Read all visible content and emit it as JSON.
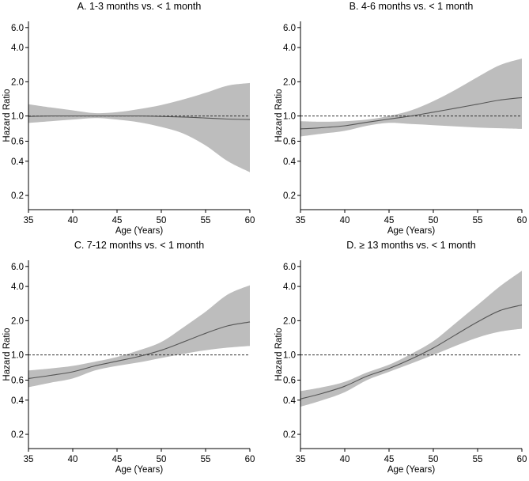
{
  "chart_data": [
    {
      "type": "line",
      "title": "A. 1-3 months vs. < 1 month",
      "xlabel": "Age (Years)",
      "ylabel": "Hazard Ratio",
      "x_ticks": [
        35,
        40,
        45,
        50,
        55,
        60
      ],
      "y_ticks": [
        0.2,
        0.4,
        0.6,
        1.0,
        2.0,
        4.0,
        6.0
      ],
      "y_tick_labels": [
        "0.2",
        "0.4",
        "0.6",
        "1.0",
        "2.0",
        "4.0",
        "6.0"
      ],
      "xlim": [
        35,
        60
      ],
      "ylim": [
        0.15,
        6.8
      ],
      "y_scale": "log",
      "reference_line": 1.0,
      "x": [
        35,
        37.5,
        40,
        42.5,
        45,
        47.5,
        50,
        52.5,
        55,
        57.5,
        60
      ],
      "series": [
        {
          "name": "estimate",
          "values": [
            0.99,
            1.0,
            1.0,
            1.0,
            1.0,
            1.0,
            0.99,
            0.98,
            0.96,
            0.94,
            0.93
          ]
        },
        {
          "name": "lower",
          "values": [
            0.87,
            0.9,
            0.93,
            0.96,
            0.93,
            0.88,
            0.8,
            0.7,
            0.55,
            0.4,
            0.32
          ]
        },
        {
          "name": "upper",
          "values": [
            1.27,
            1.19,
            1.12,
            1.06,
            1.08,
            1.15,
            1.25,
            1.4,
            1.6,
            1.85,
            1.95
          ]
        }
      ]
    },
    {
      "type": "line",
      "title": "B. 4-6 months vs. < 1 month",
      "xlabel": "Age (Years)",
      "ylabel": "Hazard Ratio",
      "x_ticks": [
        35,
        40,
        45,
        50,
        55,
        60
      ],
      "y_ticks": [
        0.2,
        0.4,
        0.6,
        1.0,
        2.0,
        4.0,
        6.0
      ],
      "y_tick_labels": [
        "0.2",
        "0.4",
        "0.6",
        "1.0",
        "2.0",
        "4.0",
        "6.0"
      ],
      "xlim": [
        35,
        60
      ],
      "ylim": [
        0.15,
        6.8
      ],
      "y_scale": "log",
      "reference_line": 1.0,
      "x": [
        35,
        37.5,
        40,
        42.5,
        45,
        47.5,
        50,
        52.5,
        55,
        57.5,
        60
      ],
      "series": [
        {
          "name": "estimate",
          "values": [
            0.77,
            0.79,
            0.82,
            0.88,
            0.94,
            1.0,
            1.08,
            1.17,
            1.27,
            1.38,
            1.45
          ]
        },
        {
          "name": "lower",
          "values": [
            0.66,
            0.7,
            0.74,
            0.82,
            0.87,
            0.85,
            0.83,
            0.81,
            0.79,
            0.78,
            0.77
          ]
        },
        {
          "name": "upper",
          "values": [
            0.9,
            0.89,
            0.9,
            0.93,
            1.0,
            1.12,
            1.35,
            1.7,
            2.2,
            2.8,
            3.2
          ]
        }
      ]
    },
    {
      "type": "line",
      "title": "C. 7-12 months vs. < 1 month",
      "xlabel": "Age (Years)",
      "ylabel": "Hazard Ratio",
      "x_ticks": [
        35,
        40,
        45,
        50,
        55,
        60
      ],
      "y_ticks": [
        0.2,
        0.4,
        0.6,
        1.0,
        2.0,
        4.0,
        6.0
      ],
      "y_tick_labels": [
        "0.2",
        "0.4",
        "0.6",
        "1.0",
        "2.0",
        "4.0",
        "6.0"
      ],
      "xlim": [
        35,
        60
      ],
      "ylim": [
        0.15,
        6.8
      ],
      "y_scale": "log",
      "reference_line": 1.0,
      "x": [
        35,
        37.5,
        40,
        42.5,
        45,
        47.5,
        50,
        52.5,
        55,
        57.5,
        60
      ],
      "series": [
        {
          "name": "estimate",
          "values": [
            0.62,
            0.66,
            0.71,
            0.8,
            0.88,
            0.97,
            1.1,
            1.3,
            1.55,
            1.8,
            1.95
          ]
        },
        {
          "name": "lower",
          "values": [
            0.52,
            0.57,
            0.62,
            0.73,
            0.8,
            0.86,
            0.94,
            1.02,
            1.1,
            1.16,
            1.2
          ]
        },
        {
          "name": "upper",
          "values": [
            0.73,
            0.76,
            0.8,
            0.87,
            0.96,
            1.1,
            1.3,
            1.75,
            2.4,
            3.4,
            4.1
          ]
        }
      ]
    },
    {
      "type": "line",
      "title": "D. ≥ 13 months vs. < 1 month",
      "xlabel": "Age (Years)",
      "ylabel": "Hazard Ratio",
      "x_ticks": [
        35,
        40,
        45,
        50,
        55,
        60
      ],
      "y_ticks": [
        0.2,
        0.4,
        0.6,
        1.0,
        2.0,
        4.0,
        6.0
      ],
      "y_tick_labels": [
        "0.2",
        "0.4",
        "0.6",
        "1.0",
        "2.0",
        "4.0",
        "6.0"
      ],
      "xlim": [
        35,
        60
      ],
      "ylim": [
        0.15,
        6.8
      ],
      "y_scale": "log",
      "reference_line": 1.0,
      "x": [
        35,
        37.5,
        40,
        42.5,
        45,
        47.5,
        50,
        52.5,
        55,
        57.5,
        60
      ],
      "series": [
        {
          "name": "estimate",
          "values": [
            0.41,
            0.46,
            0.53,
            0.65,
            0.76,
            0.92,
            1.15,
            1.5,
            1.95,
            2.45,
            2.75
          ]
        },
        {
          "name": "lower",
          "values": [
            0.35,
            0.4,
            0.47,
            0.6,
            0.71,
            0.84,
            1.0,
            1.2,
            1.42,
            1.6,
            1.7
          ]
        },
        {
          "name": "upper",
          "values": [
            0.48,
            0.52,
            0.58,
            0.7,
            0.82,
            1.02,
            1.32,
            1.9,
            2.75,
            4.0,
            5.5
          ]
        }
      ]
    }
  ],
  "colors": {
    "band": "#bdbdbd",
    "line": "#555555",
    "reference": "#333333",
    "axis": "#000000"
  }
}
